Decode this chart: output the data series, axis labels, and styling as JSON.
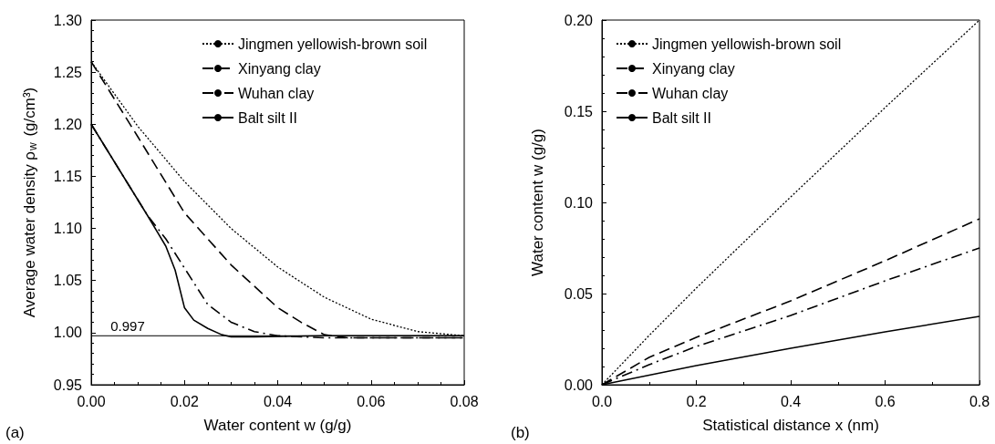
{
  "chart_data": [
    {
      "type": "line",
      "xlabel": "Water content w (g/g)",
      "ylabel": "Average water density ρ$_{w}$ (g/cm³)",
      "annotations": [
        "(a)"
      ],
      "xlim": [
        0,
        0.08
      ],
      "xticks": [
        {
          "value": 0,
          "label": "0.00"
        },
        {
          "value": 0.02,
          "label": "0.02"
        },
        {
          "value": 0.04,
          "label": "0.04"
        },
        {
          "value": 0.06,
          "label": "0.06"
        },
        {
          "value": 0.08,
          "label": "0.08"
        }
      ],
      "ylim": [
        0.95,
        1.3
      ],
      "yticks": [
        {
          "value": 0.95,
          "label": "0.95"
        },
        {
          "value": 1,
          "label": "1.00"
        },
        {
          "value": 1.05,
          "label": "1.05"
        },
        {
          "value": 1.1,
          "label": "1.10"
        },
        {
          "value": 1.15,
          "label": "1.15"
        },
        {
          "value": 1.2,
          "label": "1.20"
        },
        {
          "value": 1.25,
          "label": "1.25"
        },
        {
          "value": 1.3,
          "label": "1.30"
        }
      ],
      "grid": false,
      "legend": "top right",
      "marker": "none",
      "ref_lines": [
        {
          "axis": "y",
          "value": 0.997,
          "label": "0.997",
          "color": "#000000"
        }
      ],
      "series": [
        {
          "name": "Jingmen yellowish-brown soil",
          "color": "#000000",
          "line_style": "dotted",
          "x": [
            0,
            0.01,
            0.02,
            0.03,
            0.04,
            0.05,
            0.06,
            0.07,
            0.08
          ],
          "values": [
            1.26,
            1.198,
            1.145,
            1.1,
            1.063,
            1.034,
            1.013,
            1.001,
            0.997
          ]
        },
        {
          "name": "Xinyang clay",
          "color": "#000000",
          "line_style": "dashed",
          "x": [
            0,
            0.01,
            0.02,
            0.03,
            0.04,
            0.045,
            0.05,
            0.055,
            0.06,
            0.07,
            0.08
          ],
          "values": [
            1.26,
            1.188,
            1.115,
            1.065,
            1.024,
            1.01,
            0.998,
            0.995,
            0.995,
            0.995,
            0.995
          ]
        },
        {
          "name": "Wuhan clay",
          "color": "#000000",
          "line_style": "dashdot",
          "x": [
            0,
            0.012,
            0.016,
            0.02,
            0.025,
            0.03,
            0.035,
            0.04,
            0.05,
            0.06,
            0.07,
            0.08
          ],
          "values": [
            1.2,
            1.113,
            1.09,
            1.062,
            1.027,
            1.01,
            1.001,
            0.997,
            0.995,
            0.995,
            0.995,
            0.995
          ]
        },
        {
          "name": "Balt silt II",
          "color": "#000000",
          "line_style": "solid",
          "x": [
            0,
            0.012,
            0.016,
            0.018,
            0.02,
            0.022,
            0.025,
            0.028,
            0.03,
            0.035,
            0.05,
            0.08
          ],
          "values": [
            1.2,
            1.113,
            1.083,
            1.06,
            1.024,
            1.012,
            1.004,
            0.998,
            0.996,
            0.996,
            0.997,
            0.997
          ]
        }
      ]
    },
    {
      "type": "line",
      "xlabel": "Statistical distance x (nm)",
      "ylabel": "Water content w (g/g)",
      "annotations": [
        "(b)"
      ],
      "xlim": [
        0,
        0.8
      ],
      "xticks": [
        {
          "value": 0,
          "label": "0.0"
        },
        0.2,
        0.4,
        0.6,
        0.8
      ],
      "ylim": [
        0,
        0.2
      ],
      "yticks": [
        {
          "value": 0,
          "label": "0.00"
        },
        {
          "value": 0.05,
          "label": "0.05"
        },
        {
          "value": 0.1,
          "label": "0.10"
        },
        {
          "value": 0.15,
          "label": "0.15"
        },
        {
          "value": 0.2,
          "label": "0.20"
        }
      ],
      "grid": false,
      "legend": "top left",
      "marker": "none",
      "series": [
        {
          "name": "Jingmen yellowish-brown soil",
          "color": "#000000",
          "line_style": "dotted",
          "x": [
            0,
            0.1,
            0.2,
            0.4,
            0.6,
            0.8
          ],
          "values": [
            0,
            0.027,
            0.053,
            0.103,
            0.152,
            0.2
          ]
        },
        {
          "name": "Xinyang clay",
          "color": "#000000",
          "line_style": "dashed",
          "x": [
            0,
            0.1,
            0.2,
            0.4,
            0.6,
            0.8
          ],
          "values": [
            0,
            0.015,
            0.026,
            0.046,
            0.068,
            0.091
          ]
        },
        {
          "name": "Wuhan clay",
          "color": "#000000",
          "line_style": "dashdot",
          "x": [
            0,
            0.1,
            0.2,
            0.4,
            0.6,
            0.8
          ],
          "values": [
            0,
            0.011,
            0.021,
            0.038,
            0.057,
            0.075
          ]
        },
        {
          "name": "Balt silt II",
          "color": "#000000",
          "line_style": "solid",
          "x": [
            0,
            0.2,
            0.4,
            0.6,
            0.8
          ],
          "values": [
            0,
            0.0105,
            0.02,
            0.029,
            0.0375
          ]
        }
      ]
    }
  ]
}
